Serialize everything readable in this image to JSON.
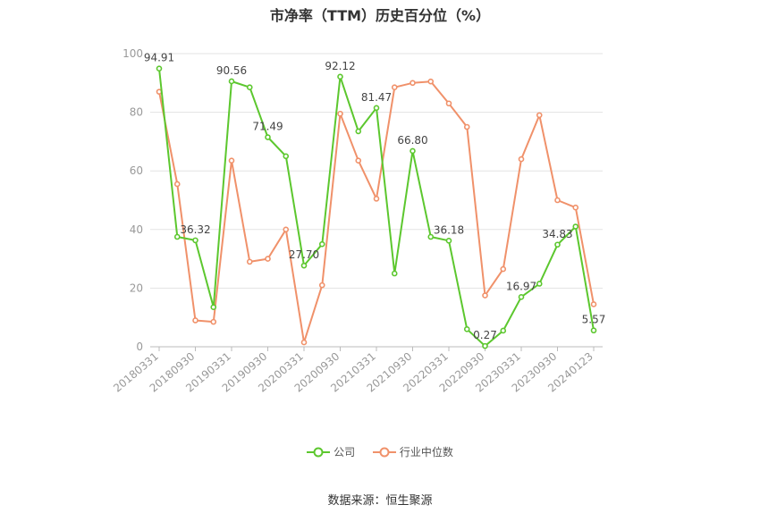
{
  "chart_data": {
    "type": "line",
    "title": "市净率（TTM）历史百分位（%）",
    "ylim": [
      0,
      100
    ],
    "yticks": [
      0,
      20,
      40,
      60,
      80,
      100
    ],
    "xtick_labels": [
      "20180331",
      "20180930",
      "20190331",
      "20190930",
      "20200331",
      "20200930",
      "20210331",
      "20210930",
      "20220331",
      "20220930",
      "20230331",
      "20230930",
      "20240123"
    ],
    "grid": true,
    "legend_position": "bottom",
    "series": [
      {
        "name": "公司",
        "color": "#5cc72e",
        "values": [
          94.91,
          37.5,
          36.32,
          13.5,
          90.56,
          88.5,
          71.49,
          65.0,
          27.7,
          35.0,
          92.12,
          73.5,
          81.47,
          25.0,
          66.8,
          37.5,
          36.18,
          6.0,
          0.27,
          5.5,
          16.97,
          21.5,
          34.83,
          41.0,
          5.57
        ],
        "labels": {
          "0": "94.91",
          "2": "36.32",
          "4": "90.56",
          "6": "71.49",
          "8": "27.70",
          "10": "92.12",
          "12": "81.47",
          "14": "66.80",
          "16": "36.18",
          "18": "0.27",
          "20": "16.97",
          "22": "34.83",
          "24": "5.57"
        }
      },
      {
        "name": "行业中位数",
        "color": "#f0916a",
        "values": [
          87.0,
          55.5,
          9.0,
          8.5,
          63.5,
          29.0,
          30.0,
          40.0,
          1.5,
          21.0,
          79.5,
          63.5,
          50.5,
          88.5,
          90.0,
          90.5,
          83.0,
          75.0,
          17.5,
          26.5,
          64.0,
          79.0,
          50.0,
          47.5,
          14.5
        ]
      }
    ]
  },
  "source": "数据来源：恒生聚源"
}
